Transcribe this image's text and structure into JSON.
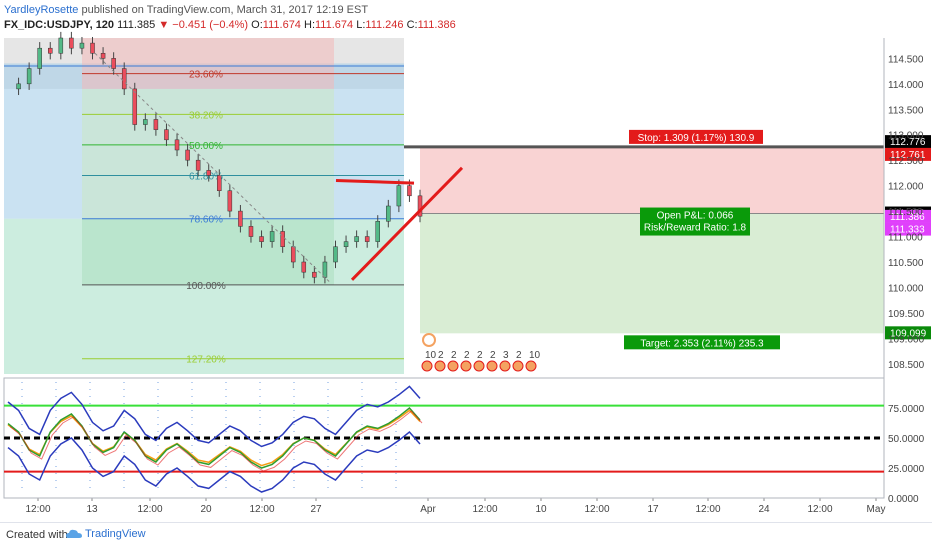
{
  "header": {
    "author": "YardleyRosette",
    "published": "published on TradingView.com, March 31, 2017 12:19 EST",
    "symbol": "FX_IDC:USDJPY, 120",
    "last": "111.385",
    "change": "−0.451 (−0.4%)",
    "open_label": "O:",
    "open": "111.674",
    "high_label": "H:",
    "high": "111.674",
    "low_label": "L:",
    "low": "111.246",
    "close_label": "C:",
    "close": "111.386"
  },
  "footer": {
    "created_with": "Created with",
    "brand": "TradingView"
  },
  "chart_data": [
    {
      "type": "line",
      "name": "USDJPY price (candles)",
      "ylim": [
        108.3,
        114.9
      ],
      "y_ticks": [
        "114.500",
        "114.000",
        "113.500",
        "113.000",
        "112.500",
        "112.000",
        "111.500",
        "111.000",
        "110.500",
        "110.000",
        "109.500",
        "109.000",
        "108.500"
      ],
      "x_ticks": [
        "12:00",
        "13",
        "12:00",
        "20",
        "12:00",
        "27",
        "Apr",
        "12:00",
        "10",
        "12:00",
        "17",
        "12:00",
        "24",
        "12:00",
        "May"
      ],
      "price_path": [
        113.9,
        114.0,
        114.3,
        114.7,
        114.6,
        114.9,
        114.7,
        114.8,
        114.6,
        114.5,
        114.3,
        113.9,
        113.2,
        113.3,
        113.1,
        112.9,
        112.7,
        112.5,
        112.3,
        112.2,
        111.9,
        111.5,
        111.2,
        111.0,
        110.9,
        111.1,
        110.8,
        110.5,
        110.3,
        110.2,
        110.5,
        110.8,
        110.9,
        111.0,
        110.9,
        111.3,
        111.6,
        112.0,
        111.8,
        111.4
      ],
      "price_tags": [
        "112.776",
        "112.761",
        "111.452",
        "111.386",
        "111.333",
        "109.099"
      ],
      "fib_levels": [
        {
          "label": "23.60%",
          "price": 114.2
        },
        {
          "label": "38.20%",
          "price": 113.4
        },
        {
          "label": "50.00%",
          "price": 112.8
        },
        {
          "label": "61.80%",
          "price": 112.2
        },
        {
          "label": "78.60%",
          "price": 111.35
        },
        {
          "label": "100.00%",
          "price": 110.05
        },
        {
          "label": "127.20%",
          "price": 108.6
        }
      ],
      "position": {
        "stop": "Stop: 1.309 (1.17%) 130.9",
        "open_pnl": "Open P&L: 0.066",
        "risk_reward": "Risk/Reward Ratio: 1.8",
        "target": "Target: 2.353 (2.11%) 235.3",
        "entry": 111.452,
        "stop_price": 112.761,
        "target_price": 109.099
      },
      "event_counts": [
        "10",
        "2",
        "2",
        "2",
        "2",
        "2",
        "3",
        "2",
        "10"
      ]
    },
    {
      "type": "line",
      "name": "oscillator",
      "ylim": [
        0,
        100
      ],
      "y_ticks": [
        "75.0000",
        "50.0000",
        "25.0000",
        "0.0000"
      ],
      "levels": [
        77,
        50,
        22
      ],
      "oscillator": [
        62,
        55,
        40,
        35,
        55,
        65,
        70,
        60,
        45,
        38,
        42,
        55,
        48,
        35,
        30,
        40,
        45,
        38,
        30,
        28,
        35,
        42,
        38,
        30,
        25,
        28,
        35,
        45,
        50,
        48,
        40,
        35,
        45,
        55,
        60,
        58,
        62,
        68,
        75,
        65
      ]
    }
  ]
}
